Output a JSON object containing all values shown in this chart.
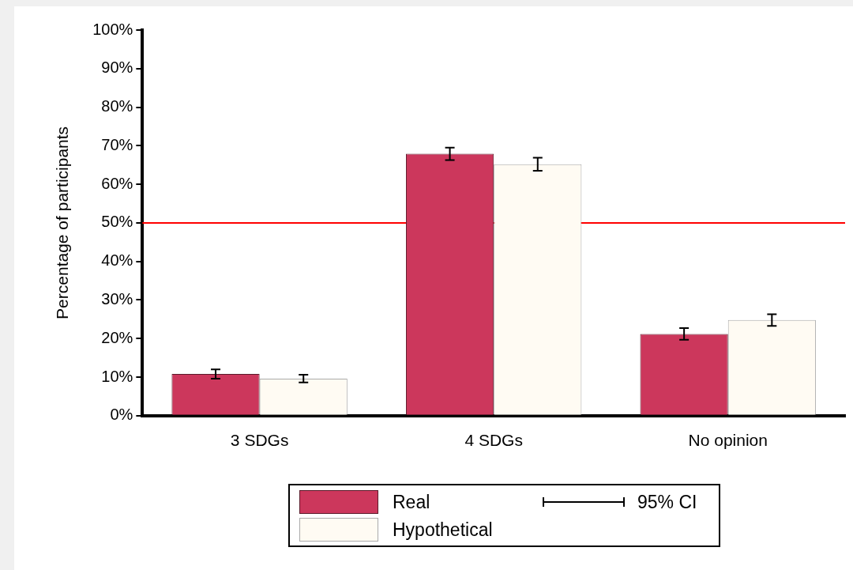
{
  "chart_data": {
    "type": "bar",
    "ylabel": "Percentage of participants",
    "categories": [
      "3 SDGs",
      "4 SDGs",
      "No opinion"
    ],
    "series": [
      {
        "name": "Real",
        "color": "#cc375c",
        "values": [
          10.8,
          67.9,
          21.2
        ],
        "errors": [
          1.2,
          1.6,
          1.5
        ]
      },
      {
        "name": "Hypothetical",
        "color": "#fffbf3",
        "values": [
          9.6,
          65.2,
          24.8
        ],
        "errors": [
          1.0,
          1.7,
          1.5
        ]
      }
    ],
    "ylim": [
      0,
      100
    ],
    "yticks": [
      {
        "value": 0,
        "label": "0%"
      },
      {
        "value": 10,
        "label": "10%"
      },
      {
        "value": 20,
        "label": "20%"
      },
      {
        "value": 30,
        "label": "30%"
      },
      {
        "value": 40,
        "label": "40%"
      },
      {
        "value": 50,
        "label": "50%"
      },
      {
        "value": 60,
        "label": "60%"
      },
      {
        "value": 70,
        "label": "70%"
      },
      {
        "value": 80,
        "label": "80%"
      },
      {
        "value": 90,
        "label": "90%"
      },
      {
        "value": 100,
        "label": "100%"
      }
    ],
    "ref_lines": [
      {
        "axis": "y",
        "value": 50,
        "color": "#ff0000"
      }
    ],
    "annotations": [
      "95% CI"
    ],
    "grid": false,
    "legend": "bottom"
  }
}
